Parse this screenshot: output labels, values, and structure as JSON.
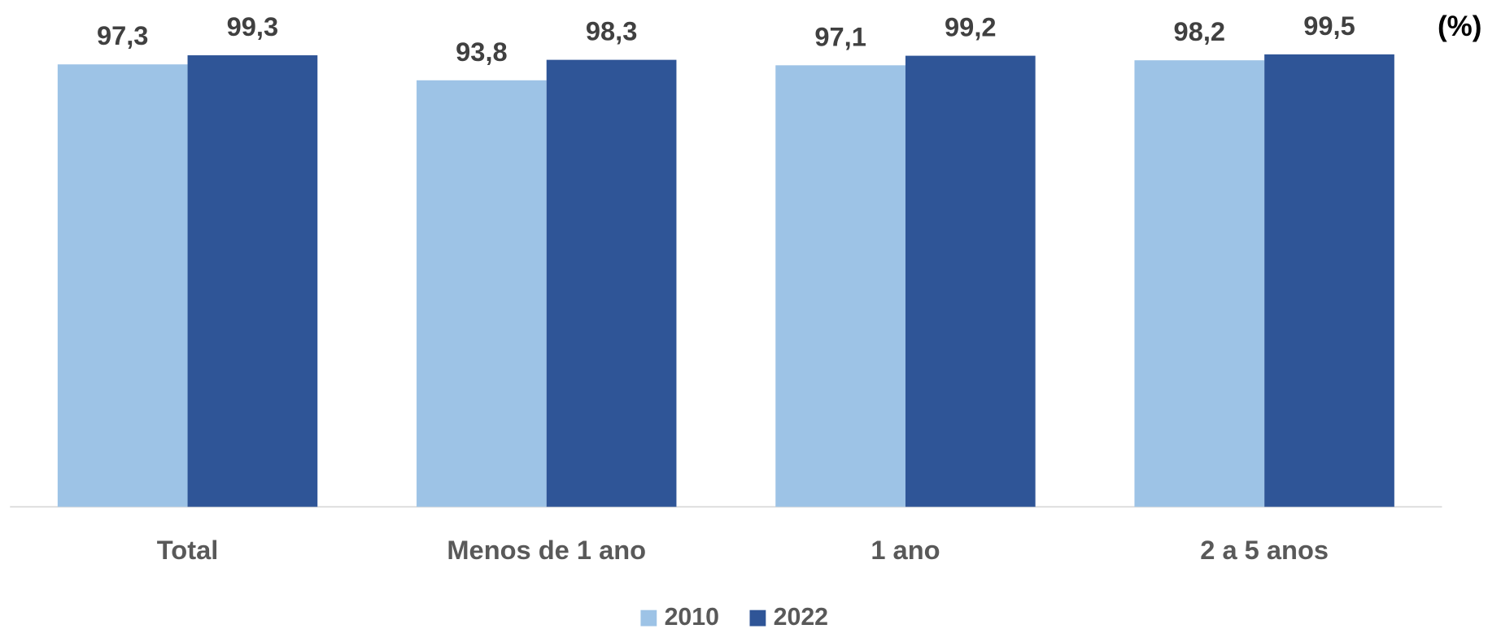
{
  "chart_data": {
    "type": "bar",
    "annotation": "(%)",
    "categories": [
      "Total",
      "Menos de 1 ano",
      "1 ano",
      "2 a 5 anos"
    ],
    "series": [
      {
        "name": "2010",
        "color": "#9dc3e6",
        "values": [
          97.3,
          93.8,
          97.1,
          98.2
        ],
        "value_labels": [
          "97,3",
          "93,8",
          "97,1",
          "98,2"
        ]
      },
      {
        "name": "2022",
        "color": "#2f5597",
        "values": [
          99.3,
          98.3,
          99.2,
          99.5
        ],
        "value_labels": [
          "99,3",
          "98,3",
          "99,2",
          "99,5"
        ]
      }
    ],
    "ylim": [
      0,
      100
    ]
  }
}
